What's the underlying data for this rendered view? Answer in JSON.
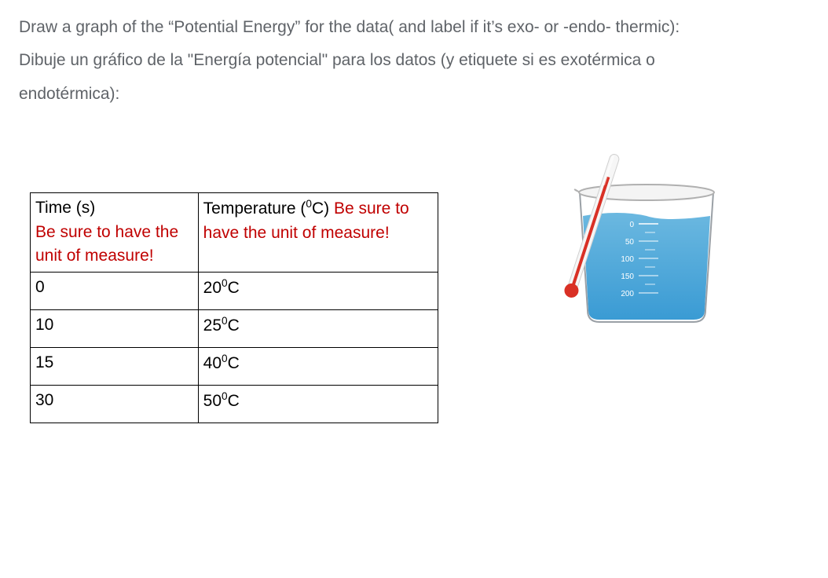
{
  "question": {
    "line_en": "Draw a graph of the “Potential Energy” for the data( and label if it’s exo- or -endo- thermic):",
    "line_es_1": "Dibuje un gráfico de la \"Energía potencial\" para los datos (y etiquete si es exotérmica o",
    "line_es_2": "endotérmica):"
  },
  "table": {
    "header": {
      "col1_black": "Time (s)",
      "col1_red": "Be sure to have the unit of measure!",
      "col2_black_prefix": "Temperature (",
      "col2_black_unit": "0",
      "col2_black_suffix": "C) ",
      "col2_red": "Be sure to have the unit of measure!"
    },
    "rows": [
      {
        "time": "0",
        "temp_val": "20",
        "temp_sup": "0",
        "temp_unit": "C"
      },
      {
        "time": "10",
        "temp_val": "25",
        "temp_sup": "0",
        "temp_unit": "C"
      },
      {
        "time": "15",
        "temp_val": "40",
        "temp_sup": "0",
        "temp_unit": "C"
      },
      {
        "time": "30",
        "temp_val": "50",
        "temp_sup": "0",
        "temp_unit": "C"
      }
    ]
  },
  "beaker": {
    "rim_color": "#b0b0b0",
    "glass_stroke": "#9aa0a6",
    "liquid_colors": [
      "#6bb8e0",
      "#3a9bd4"
    ],
    "thermometer": {
      "tube_fill": "#f6f6f6",
      "tube_stroke": "#d0d0d0",
      "mercury_color": "#d93025",
      "bulb_color": "#d93025"
    },
    "scale": {
      "labels": [
        "0",
        "50",
        "100",
        "150",
        "200"
      ],
      "text_color": "#ffffff",
      "tick_color": "#ffffff"
    }
  }
}
